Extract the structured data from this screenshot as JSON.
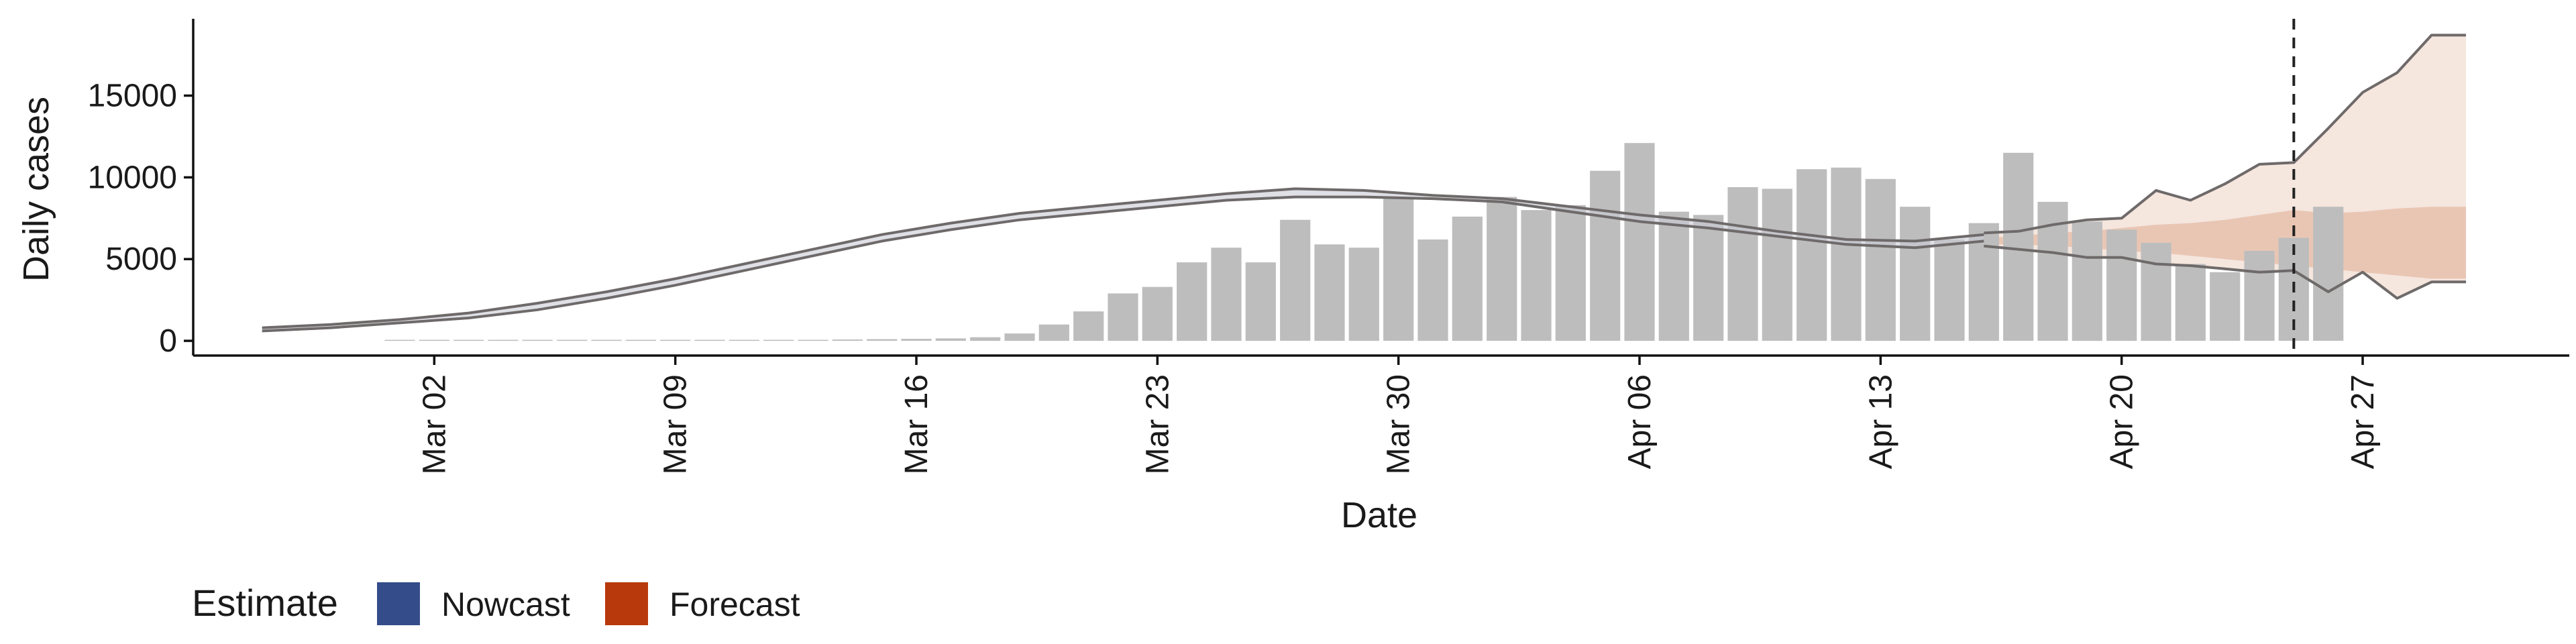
{
  "chart_data": {
    "type": "bar",
    "xlabel": "Date",
    "ylabel": "Daily cases",
    "x_axis": {
      "type": "date",
      "range": [
        "2020-02-24",
        "2020-05-03"
      ],
      "tick_labels": [
        "Mar 02",
        "Mar 09",
        "Mar 16",
        "Mar 23",
        "Mar 30",
        "Apr 06",
        "Apr 13",
        "Apr 20",
        "Apr 27"
      ],
      "tick_dates": [
        "2020-03-02",
        "2020-03-09",
        "2020-03-16",
        "2020-03-23",
        "2020-03-30",
        "2020-04-06",
        "2020-04-13",
        "2020-04-20",
        "2020-04-27"
      ]
    },
    "y_axis": {
      "range": [
        -900,
        19700
      ],
      "ticks": [
        0,
        5000,
        10000,
        15000
      ],
      "tick_labels": [
        "0",
        "5000",
        "10000",
        "15000"
      ]
    },
    "grid": false,
    "forecast_date": "2020-04-25",
    "legend": {
      "position": "bottom-left",
      "title": "Estimate",
      "items": [
        {
          "label": "Nowcast",
          "color": "#344c8a"
        },
        {
          "label": "Forecast",
          "color": "#b83a0c"
        }
      ]
    },
    "colors": {
      "bar": "#bdbdbd",
      "line": "#6f6a6a",
      "forecast_outer": "#f5e6de",
      "forecast_inner": "#e6c0ad",
      "nowcast_band": "#c9ccd6"
    },
    "observed_cases": {
      "start_date": "2020-03-01",
      "values": [
        0,
        0,
        0,
        0,
        0,
        20,
        10,
        0,
        10,
        20,
        30,
        50,
        60,
        80,
        100,
        120,
        150,
        220,
        450,
        1000,
        1800,
        2900,
        3300,
        4800,
        5700,
        4800,
        7400,
        5900,
        5700,
        8800,
        6200,
        7600,
        8800,
        8000,
        8300,
        10400,
        12100,
        7900,
        7700,
        9400,
        9300,
        10500,
        10600,
        9900,
        8200,
        6200,
        7200,
        11500,
        8500,
        7300,
        6800,
        6000,
        4700,
        4200,
        5500,
        6300,
        8200
      ]
    },
    "nowcast": {
      "dates": [
        "2020-02-26",
        "2020-02-28",
        "2020-03-01",
        "2020-03-03",
        "2020-03-05",
        "2020-03-07",
        "2020-03-09",
        "2020-03-11",
        "2020-03-13",
        "2020-03-15",
        "2020-03-17",
        "2020-03-19",
        "2020-03-21",
        "2020-03-23",
        "2020-03-25",
        "2020-03-27",
        "2020-03-29",
        "2020-03-31",
        "2020-04-02",
        "2020-04-04",
        "2020-04-06",
        "2020-04-08",
        "2020-04-10",
        "2020-04-12",
        "2020-04-14",
        "2020-04-16"
      ],
      "upper": [
        800,
        1000,
        1300,
        1700,
        2300,
        3000,
        3800,
        4700,
        5600,
        6500,
        7200,
        7800,
        8200,
        8600,
        9000,
        9300,
        9200,
        8900,
        8700,
        8200,
        7700,
        7300,
        6700,
        6200,
        6100,
        6500
      ],
      "lower": [
        600,
        800,
        1100,
        1400,
        1900,
        2600,
        3400,
        4300,
        5200,
        6100,
        6800,
        7400,
        7800,
        8200,
        8600,
        8800,
        8800,
        8700,
        8500,
        7900,
        7300,
        6900,
        6400,
        5900,
        5700,
        6100
      ]
    },
    "forecast": {
      "dates": [
        "2020-04-16",
        "2020-04-17",
        "2020-04-18",
        "2020-04-19",
        "2020-04-20",
        "2020-04-21",
        "2020-04-22",
        "2020-04-23",
        "2020-04-24",
        "2020-04-25",
        "2020-04-26",
        "2020-04-27",
        "2020-04-28",
        "2020-04-29",
        "2020-04-30"
      ],
      "outer_upper": [
        6600,
        6700,
        7100,
        7400,
        7500,
        9200,
        8600,
        9600,
        10800,
        10900,
        13000,
        15200,
        16400,
        18700,
        18700
      ],
      "outer_lower": [
        5800,
        5600,
        5400,
        5100,
        5100,
        4700,
        4600,
        4400,
        4200,
        4300,
        3000,
        4200,
        2600,
        3600,
        3600
      ],
      "inner_upper": [
        6300,
        6400,
        6600,
        6700,
        6900,
        7100,
        7200,
        7400,
        7700,
        8000,
        7800,
        7900,
        8100,
        8200,
        8200
      ],
      "inner_lower": [
        5900,
        5900,
        5800,
        5700,
        5500,
        5400,
        5200,
        5000,
        4800,
        4600,
        4400,
        4200,
        4000,
        3800,
        3800
      ]
    }
  }
}
